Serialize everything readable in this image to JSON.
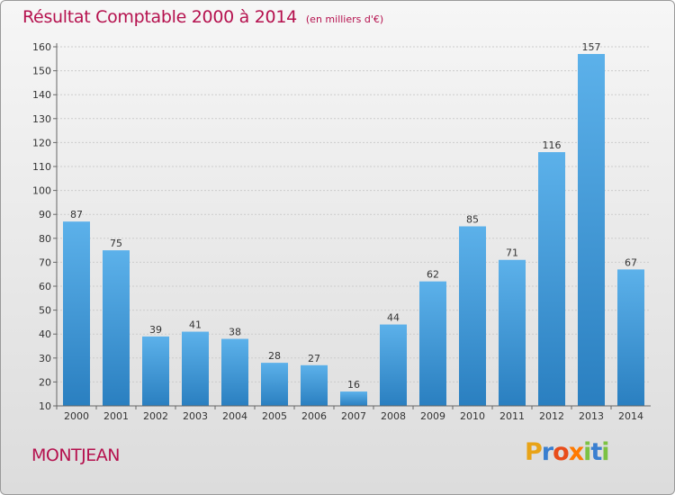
{
  "header": {
    "title": "Résultat Comptable 2000 à 2014",
    "subtitle": "(en milliers d'€)"
  },
  "footer": {
    "place": "MONTJEAN",
    "logo": "Proxiti"
  },
  "colors": {
    "title": "#b5114e",
    "bar_light": "#5cb1ea",
    "bar_dark": "#2a7fc0",
    "logo_letters": [
      "#e8a317",
      "#3a7fd0",
      "#e84c1a",
      "#ff7a00",
      "#7cc242",
      "#3a7fd0",
      "#7cc242"
    ]
  },
  "chart_data": {
    "type": "bar",
    "categories": [
      "2000",
      "2001",
      "2002",
      "2003",
      "2004",
      "2005",
      "2006",
      "2007",
      "2008",
      "2009",
      "2010",
      "2011",
      "2012",
      "2013",
      "2014"
    ],
    "values": [
      87,
      75,
      39,
      41,
      38,
      28,
      27,
      16,
      44,
      62,
      85,
      71,
      116,
      157,
      67
    ],
    "title": "Résultat Comptable 2000 à 2014",
    "subtitle": "(en milliers d'€)",
    "ylim": [
      10,
      160
    ],
    "yticks": [
      10,
      20,
      30,
      40,
      50,
      60,
      70,
      80,
      90,
      100,
      110,
      120,
      130,
      140,
      150,
      160
    ],
    "grid": true,
    "legend": "none"
  }
}
